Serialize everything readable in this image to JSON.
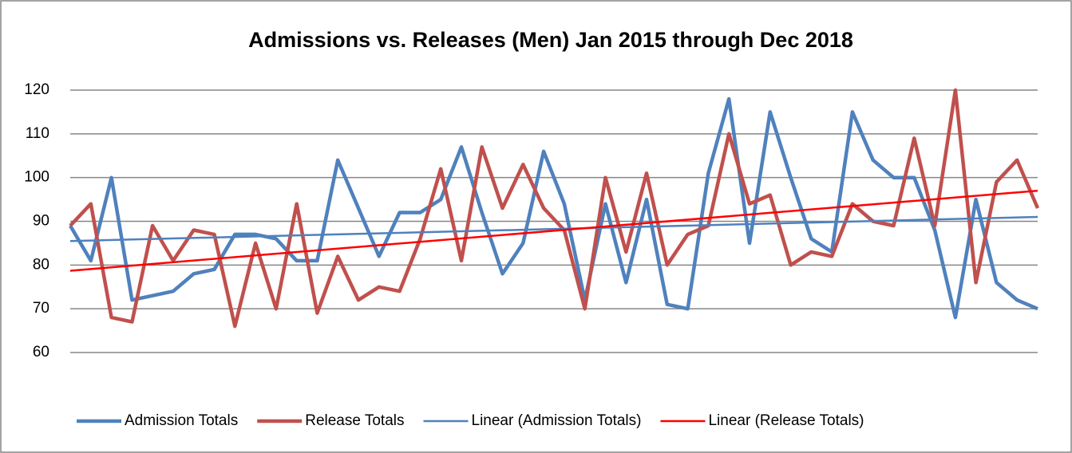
{
  "chart_data": {
    "type": "line",
    "title": "Admissions vs. Releases (Men) Jan 2015 through Dec 2018",
    "series": [
      {
        "name": "Admission Totals",
        "color": "#4f81bd",
        "values": [
          89,
          81,
          100,
          72,
          73,
          74,
          78,
          79,
          87,
          87,
          86,
          81,
          81,
          104,
          93,
          82,
          92,
          92,
          95,
          107,
          92,
          78,
          85,
          106,
          94,
          72,
          94,
          76,
          95,
          71,
          70,
          101,
          118,
          85,
          115,
          100,
          86,
          83,
          115,
          104,
          100,
          100,
          88,
          68,
          95,
          76,
          72,
          70
        ]
      },
      {
        "name": "Release Totals",
        "color": "#c0504d",
        "values": [
          89,
          94,
          68,
          67,
          89,
          81,
          88,
          87,
          66,
          85,
          70,
          94,
          69,
          82,
          72,
          75,
          74,
          86,
          102,
          81,
          107,
          93,
          103,
          93,
          88,
          70,
          100,
          83,
          101,
          80,
          87,
          89,
          110,
          94,
          96,
          80,
          83,
          82,
          94,
          90,
          89,
          109,
          89,
          120,
          76,
          99,
          104,
          93
        ]
      },
      {
        "name": "Linear (Admission Totals)",
        "color": "#4f81bd",
        "trend": true,
        "values": [
          85.5,
          91
        ]
      },
      {
        "name": "Linear (Release Totals)",
        "color": "#ff0000",
        "trend": true,
        "values": [
          78.7,
          97
        ]
      }
    ],
    "ylim": [
      60,
      120
    ],
    "yticks": [
      60,
      70,
      80,
      90,
      100,
      110,
      120
    ],
    "grid": true,
    "legend": "bottom"
  }
}
